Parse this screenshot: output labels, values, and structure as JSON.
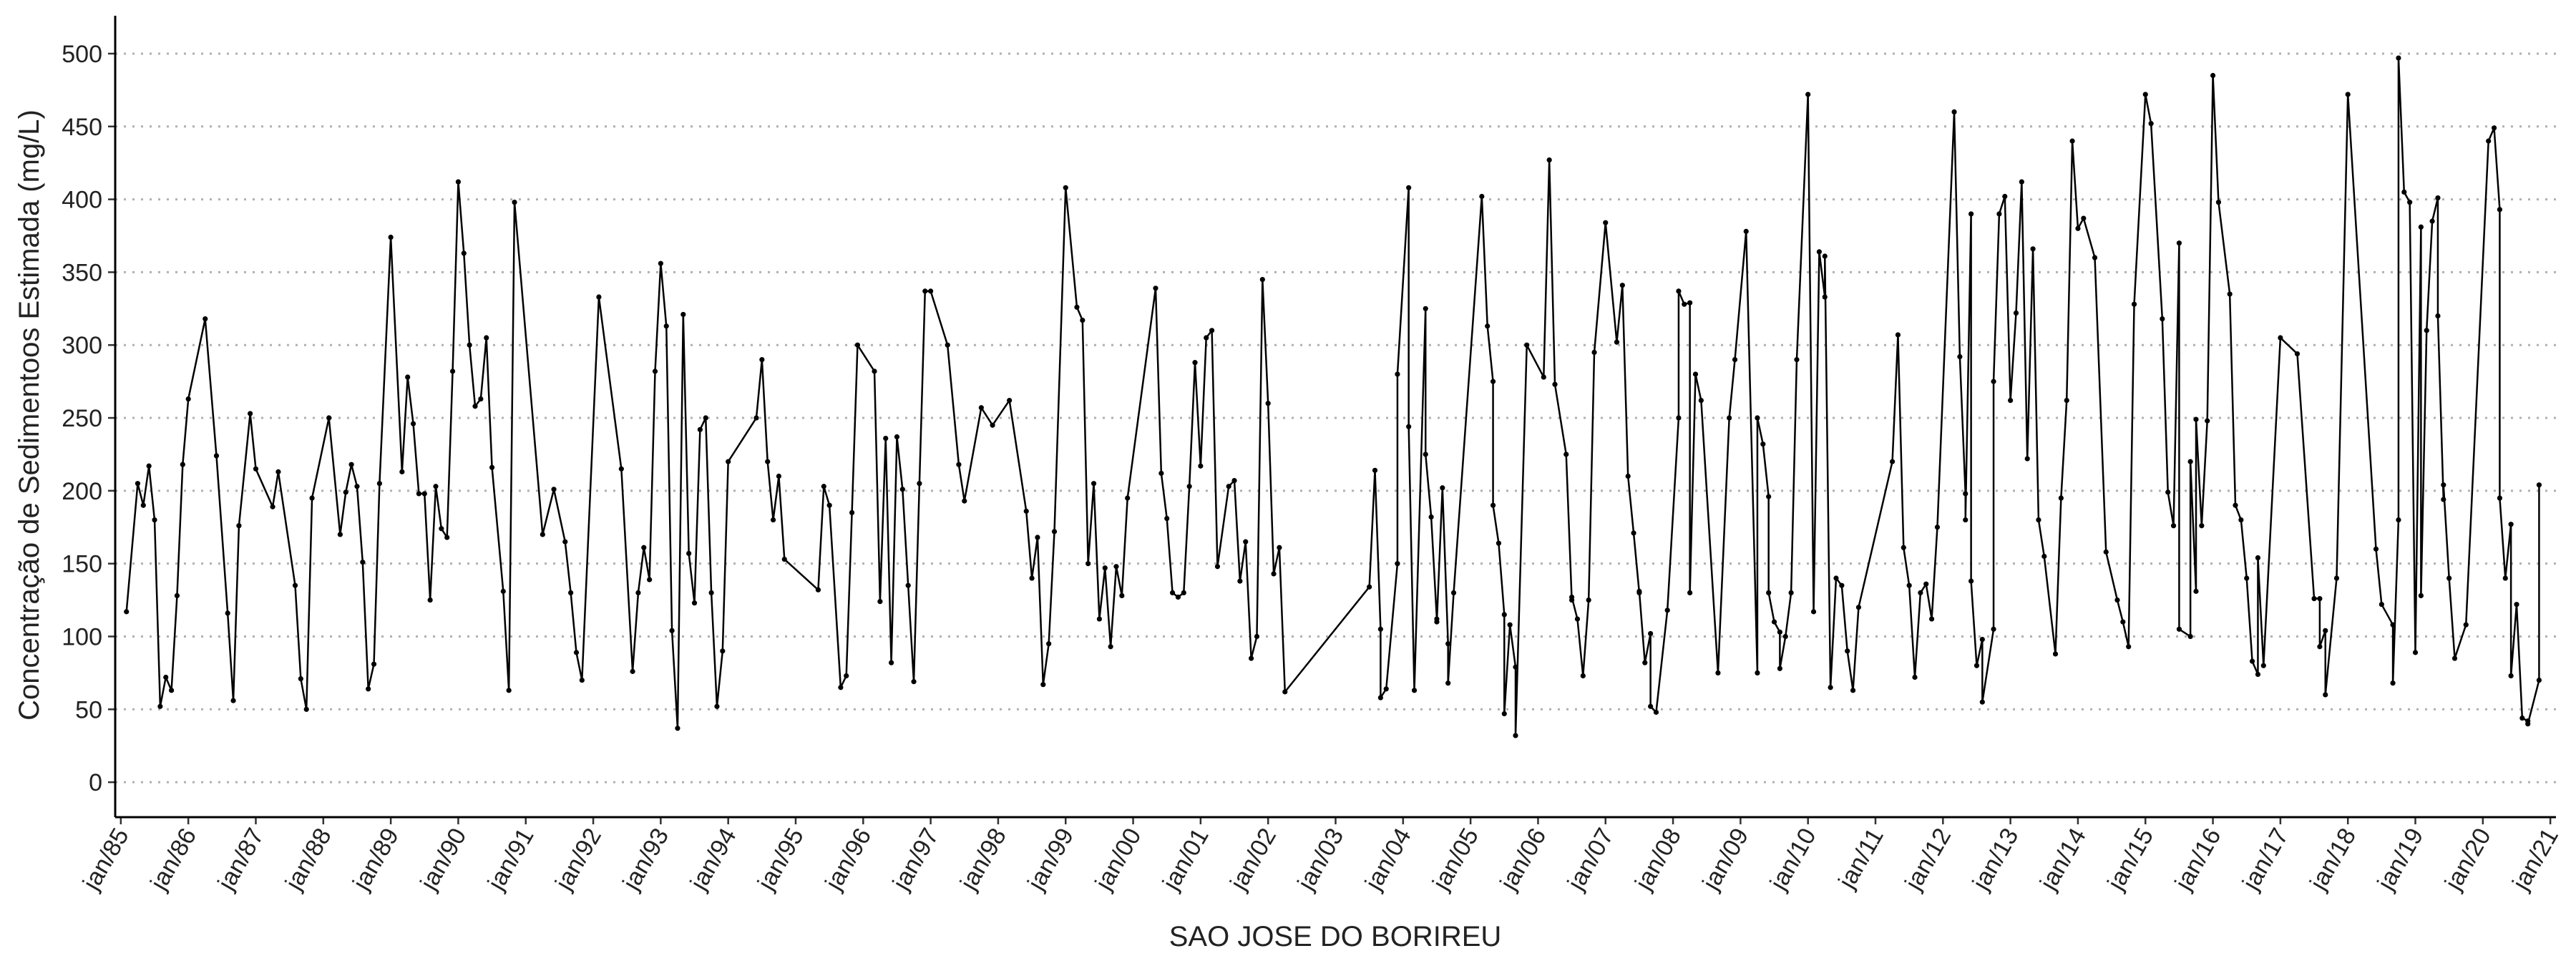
{
  "chart_data": {
    "type": "line",
    "x_label": "SAO JOSE DO BORIREU",
    "y_label": "Concentração de Sedimentoos Estimada (mg/L)",
    "color": "#000000",
    "grid": true,
    "xlim": [
      "1984-12",
      "2021-02"
    ],
    "ylim": [
      -24,
      526
    ],
    "yticks": [
      0,
      50,
      100,
      150,
      200,
      250,
      300,
      350,
      400,
      450,
      500
    ],
    "xticks": [
      {
        "value": "1985-01",
        "label": "jan/85"
      },
      {
        "value": "1986-01",
        "label": "jan/86"
      },
      {
        "value": "1987-01",
        "label": "jan/87"
      },
      {
        "value": "1988-01",
        "label": "jan/88"
      },
      {
        "value": "1989-01",
        "label": "jan/89"
      },
      {
        "value": "1990-01",
        "label": "jan/90"
      },
      {
        "value": "1991-01",
        "label": "jan/91"
      },
      {
        "value": "1992-01",
        "label": "jan/92"
      },
      {
        "value": "1993-01",
        "label": "jan/93"
      },
      {
        "value": "1994-01",
        "label": "jan/94"
      },
      {
        "value": "1995-01",
        "label": "jan/95"
      },
      {
        "value": "1996-01",
        "label": "jan/96"
      },
      {
        "value": "1997-01",
        "label": "jan/97"
      },
      {
        "value": "1998-01",
        "label": "jan/98"
      },
      {
        "value": "1999-01",
        "label": "jan/99"
      },
      {
        "value": "2000-01",
        "label": "jan/00"
      },
      {
        "value": "2001-01",
        "label": "jan/01"
      },
      {
        "value": "2002-01",
        "label": "jan/02"
      },
      {
        "value": "2003-01",
        "label": "jan/03"
      },
      {
        "value": "2004-01",
        "label": "jan/04"
      },
      {
        "value": "2005-01",
        "label": "jan/05"
      },
      {
        "value": "2006-01",
        "label": "jan/06"
      },
      {
        "value": "2007-01",
        "label": "jan/07"
      },
      {
        "value": "2008-01",
        "label": "jan/08"
      },
      {
        "value": "2009-01",
        "label": "jan/09"
      },
      {
        "value": "2010-01",
        "label": "jan/10"
      },
      {
        "value": "2011-01",
        "label": "jan/11"
      },
      {
        "value": "2012-01",
        "label": "jan/12"
      },
      {
        "value": "2013-01",
        "label": "jan/13"
      },
      {
        "value": "2014-01",
        "label": "jan/14"
      },
      {
        "value": "2015-01",
        "label": "jan/15"
      },
      {
        "value": "2016-01",
        "label": "jan/16"
      },
      {
        "value": "2017-01",
        "label": "jan/17"
      },
      {
        "value": "2018-01",
        "label": "jan/18"
      },
      {
        "value": "2019-01",
        "label": "jan/19"
      },
      {
        "value": "2020-01",
        "label": "jan/20"
      },
      {
        "value": "2021-01",
        "label": "jan/21"
      }
    ],
    "x": [
      "1985-02",
      "1985-04",
      "1985-05",
      "1985-06",
      "1985-07",
      "1985-08",
      "1985-09",
      "1985-10",
      "1985-11",
      "1985-12",
      "1986-01",
      "1986-04",
      "1986-06",
      "1986-08",
      "1986-09",
      "1986-10",
      "1986-12",
      "1987-01",
      "1987-04",
      "1987-05",
      "1987-08",
      "1987-09",
      "1987-10",
      "1987-11",
      "1988-02",
      "1988-04",
      "1988-05",
      "1988-06",
      "1988-07",
      "1988-08",
      "1988-09",
      "1988-10",
      "1988-11",
      "1989-01",
      "1989-03",
      "1989-04",
      "1989-05",
      "1989-06",
      "1989-07",
      "1989-08",
      "1989-09",
      "1989-10",
      "1989-11",
      "1989-12",
      "1990-01",
      "1990-02",
      "1990-03",
      "1990-04",
      "1990-05",
      "1990-06",
      "1990-07",
      "1990-09",
      "1990-10",
      "1990-11",
      "1991-04",
      "1991-06",
      "1991-08",
      "1991-09",
      "1991-10",
      "1991-11",
      "1992-02",
      "1992-06",
      "1992-08",
      "1992-09",
      "1992-10",
      "1992-11",
      "1992-12",
      "1993-01",
      "1993-02",
      "1993-03",
      "1993-04",
      "1993-05",
      "1993-06",
      "1993-07",
      "1993-08",
      "1993-09",
      "1993-10",
      "1993-11",
      "1993-12",
      "1994-01",
      "1994-06",
      "1994-07",
      "1994-08",
      "1994-09",
      "1994-10",
      "1994-11",
      "1995-05",
      "1995-06",
      "1995-07",
      "1995-09",
      "1995-10",
      "1995-11",
      "1995-12",
      "1996-03",
      "1996-04",
      "1996-05",
      "1996-06",
      "1996-07",
      "1996-08",
      "1996-09",
      "1996-10",
      "1996-11",
      "1996-12",
      "1997-01",
      "1997-04",
      "1997-06",
      "1997-07",
      "1997-10",
      "1997-12",
      "1998-03",
      "1998-06",
      "1998-07",
      "1998-08",
      "1998-09",
      "1998-10",
      "1998-11",
      "1999-01",
      "1999-03",
      "1999-04",
      "1999-05",
      "1999-06",
      "1999-07",
      "1999-08",
      "1999-09",
      "1999-10",
      "1999-11",
      "1999-12",
      "2000-05",
      "2000-06",
      "2000-07",
      "2000-08",
      "2000-09",
      "2000-10",
      "2000-11",
      "2000-12",
      "2001-01",
      "2001-02",
      "2001-03",
      "2001-04",
      "2001-06",
      "2001-07",
      "2001-08",
      "2001-09",
      "2001-10",
      "2001-11",
      "2001-12",
      "2002-01",
      "2002-02",
      "2002-03",
      "2002-04",
      "2003-07",
      "2003-08",
      "2003-09",
      "2003-09",
      "2003-10",
      "2003-12",
      "2003-12",
      "2004-02",
      "2004-02",
      "2004-03",
      "2004-05",
      "2004-05",
      "2004-06",
      "2004-07",
      "2004-07",
      "2004-08",
      "2004-09",
      "2004-09",
      "2004-10",
      "2005-03",
      "2005-04",
      "2005-05",
      "2005-05",
      "2005-06",
      "2005-07",
      "2005-07",
      "2005-08",
      "2005-09",
      "2005-09",
      "2005-11",
      "2006-02",
      "2006-03",
      "2006-04",
      "2006-06",
      "2006-07",
      "2006-07",
      "2006-08",
      "2006-09",
      "2006-10",
      "2006-11",
      "2007-01",
      "2007-03",
      "2007-04",
      "2007-05",
      "2007-06",
      "2007-07",
      "2007-07",
      "2007-08",
      "2007-09",
      "2007-09",
      "2007-10",
      "2007-12",
      "2008-02",
      "2008-02",
      "2008-03",
      "2008-04",
      "2008-04",
      "2008-05",
      "2008-06",
      "2008-09",
      "2008-11",
      "2008-12",
      "2009-02",
      "2009-04",
      "2009-04",
      "2009-05",
      "2009-06",
      "2009-06",
      "2009-07",
      "2009-08",
      "2009-08",
      "2009-09",
      "2009-10",
      "2009-11",
      "2010-01",
      "2010-02",
      "2010-03",
      "2010-04",
      "2010-04",
      "2010-05",
      "2010-06",
      "2010-07",
      "2010-08",
      "2010-09",
      "2010-10",
      "2011-04",
      "2011-05",
      "2011-06",
      "2011-07",
      "2011-08",
      "2011-09",
      "2011-10",
      "2011-11",
      "2011-12",
      "2012-03",
      "2012-04",
      "2012-05",
      "2012-05",
      "2012-06",
      "2012-06",
      "2012-07",
      "2012-08",
      "2012-08",
      "2012-10",
      "2012-10",
      "2012-11",
      "2012-12",
      "2013-01",
      "2013-02",
      "2013-03",
      "2013-04",
      "2013-05",
      "2013-06",
      "2013-07",
      "2013-09",
      "2013-10",
      "2013-11",
      "2013-12",
      "2014-01",
      "2014-02",
      "2014-04",
      "2014-06",
      "2014-08",
      "2014-09",
      "2014-10",
      "2014-11",
      "2015-01",
      "2015-02",
      "2015-04",
      "2015-05",
      "2015-06",
      "2015-07",
      "2015-07",
      "2015-09",
      "2015-09",
      "2015-10",
      "2015-10",
      "2015-11",
      "2015-12",
      "2016-01",
      "2016-02",
      "2016-04",
      "2016-05",
      "2016-06",
      "2016-07",
      "2016-08",
      "2016-09",
      "2016-09",
      "2016-10",
      "2017-01",
      "2017-04",
      "2017-07",
      "2017-08",
      "2017-08",
      "2017-09",
      "2017-09",
      "2017-11",
      "2018-01",
      "2018-06",
      "2018-07",
      "2018-09",
      "2018-09",
      "2018-10",
      "2018-10",
      "2018-11",
      "2018-12",
      "2019-01",
      "2019-02",
      "2019-02",
      "2019-03",
      "2019-04",
      "2019-05",
      "2019-05",
      "2019-06",
      "2019-06",
      "2019-07",
      "2019-08",
      "2019-10",
      "2020-02",
      "2020-03",
      "2020-04",
      "2020-04",
      "2020-05",
      "2020-06",
      "2020-06",
      "2020-07",
      "2020-08",
      "2020-09",
      "2020-09",
      "2020-11",
      "2020-11"
    ],
    "values": [
      117,
      205,
      190,
      217,
      180,
      52,
      72,
      63,
      128,
      218,
      263,
      318,
      224,
      116,
      56,
      176,
      253,
      215,
      189,
      213,
      135,
      71,
      50,
      195,
      250,
      170,
      199,
      218,
      203,
      151,
      64,
      81,
      205,
      374,
      213,
      278,
      246,
      198,
      198,
      125,
      203,
      174,
      168,
      282,
      412,
      363,
      300,
      258,
      263,
      305,
      216,
      131,
      63,
      398,
      170,
      201,
      165,
      130,
      89,
      70,
      333,
      215,
      76,
      130,
      161,
      139,
      282,
      356,
      313,
      104,
      37,
      321,
      157,
      123,
      242,
      250,
      130,
      52,
      90,
      220,
      250,
      290,
      220,
      180,
      210,
      153,
      132,
      203,
      190,
      65,
      73,
      185,
      300,
      282,
      124,
      236,
      82,
      237,
      201,
      135,
      69,
      205,
      337,
      337,
      300,
      218,
      193,
      257,
      245,
      262,
      186,
      140,
      168,
      67,
      95,
      172,
      408,
      326,
      317,
      150,
      205,
      112,
      147,
      93,
      148,
      128,
      195,
      339,
      212,
      181,
      130,
      127,
      130,
      203,
      288,
      217,
      305,
      310,
      148,
      203,
      207,
      138,
      165,
      85,
      100,
      345,
      260,
      143,
      161,
      62,
      134,
      214,
      105,
      58,
      64,
      150,
      280,
      408,
      244,
      63,
      325,
      225,
      182,
      112,
      110,
      202,
      95,
      68,
      130,
      402,
      313,
      275,
      190,
      164,
      115,
      47,
      108,
      79,
      32,
      300,
      278,
      427,
      273,
      225,
      125,
      127,
      112,
      73,
      125,
      295,
      384,
      302,
      341,
      210,
      171,
      130,
      131,
      82,
      102,
      52,
      48,
      118,
      250,
      337,
      328,
      329,
      130,
      280,
      262,
      75,
      250,
      290,
      378,
      75,
      250,
      232,
      196,
      130,
      110,
      103,
      78,
      100,
      130,
      290,
      472,
      117,
      364,
      333,
      361,
      65,
      140,
      135,
      90,
      63,
      120,
      220,
      307,
      161,
      135,
      72,
      130,
      136,
      112,
      175,
      460,
      292,
      198,
      180,
      390,
      138,
      80,
      98,
      55,
      105,
      275,
      390,
      402,
      262,
      322,
      412,
      222,
      366,
      180,
      155,
      88,
      195,
      262,
      440,
      380,
      387,
      360,
      158,
      125,
      110,
      93,
      328,
      472,
      452,
      318,
      199,
      176,
      370,
      105,
      100,
      220,
      131,
      249,
      176,
      248,
      485,
      398,
      335,
      190,
      180,
      140,
      83,
      74,
      154,
      80,
      305,
      294,
      126,
      126,
      93,
      104,
      60,
      140,
      472,
      160,
      122,
      108,
      68,
      180,
      497,
      405,
      398,
      89,
      381,
      128,
      310,
      385,
      401,
      320,
      194,
      204,
      140,
      85,
      108,
      440,
      449,
      393,
      195,
      140,
      177,
      73,
      122,
      44,
      42,
      40,
      70,
      204
    ]
  }
}
